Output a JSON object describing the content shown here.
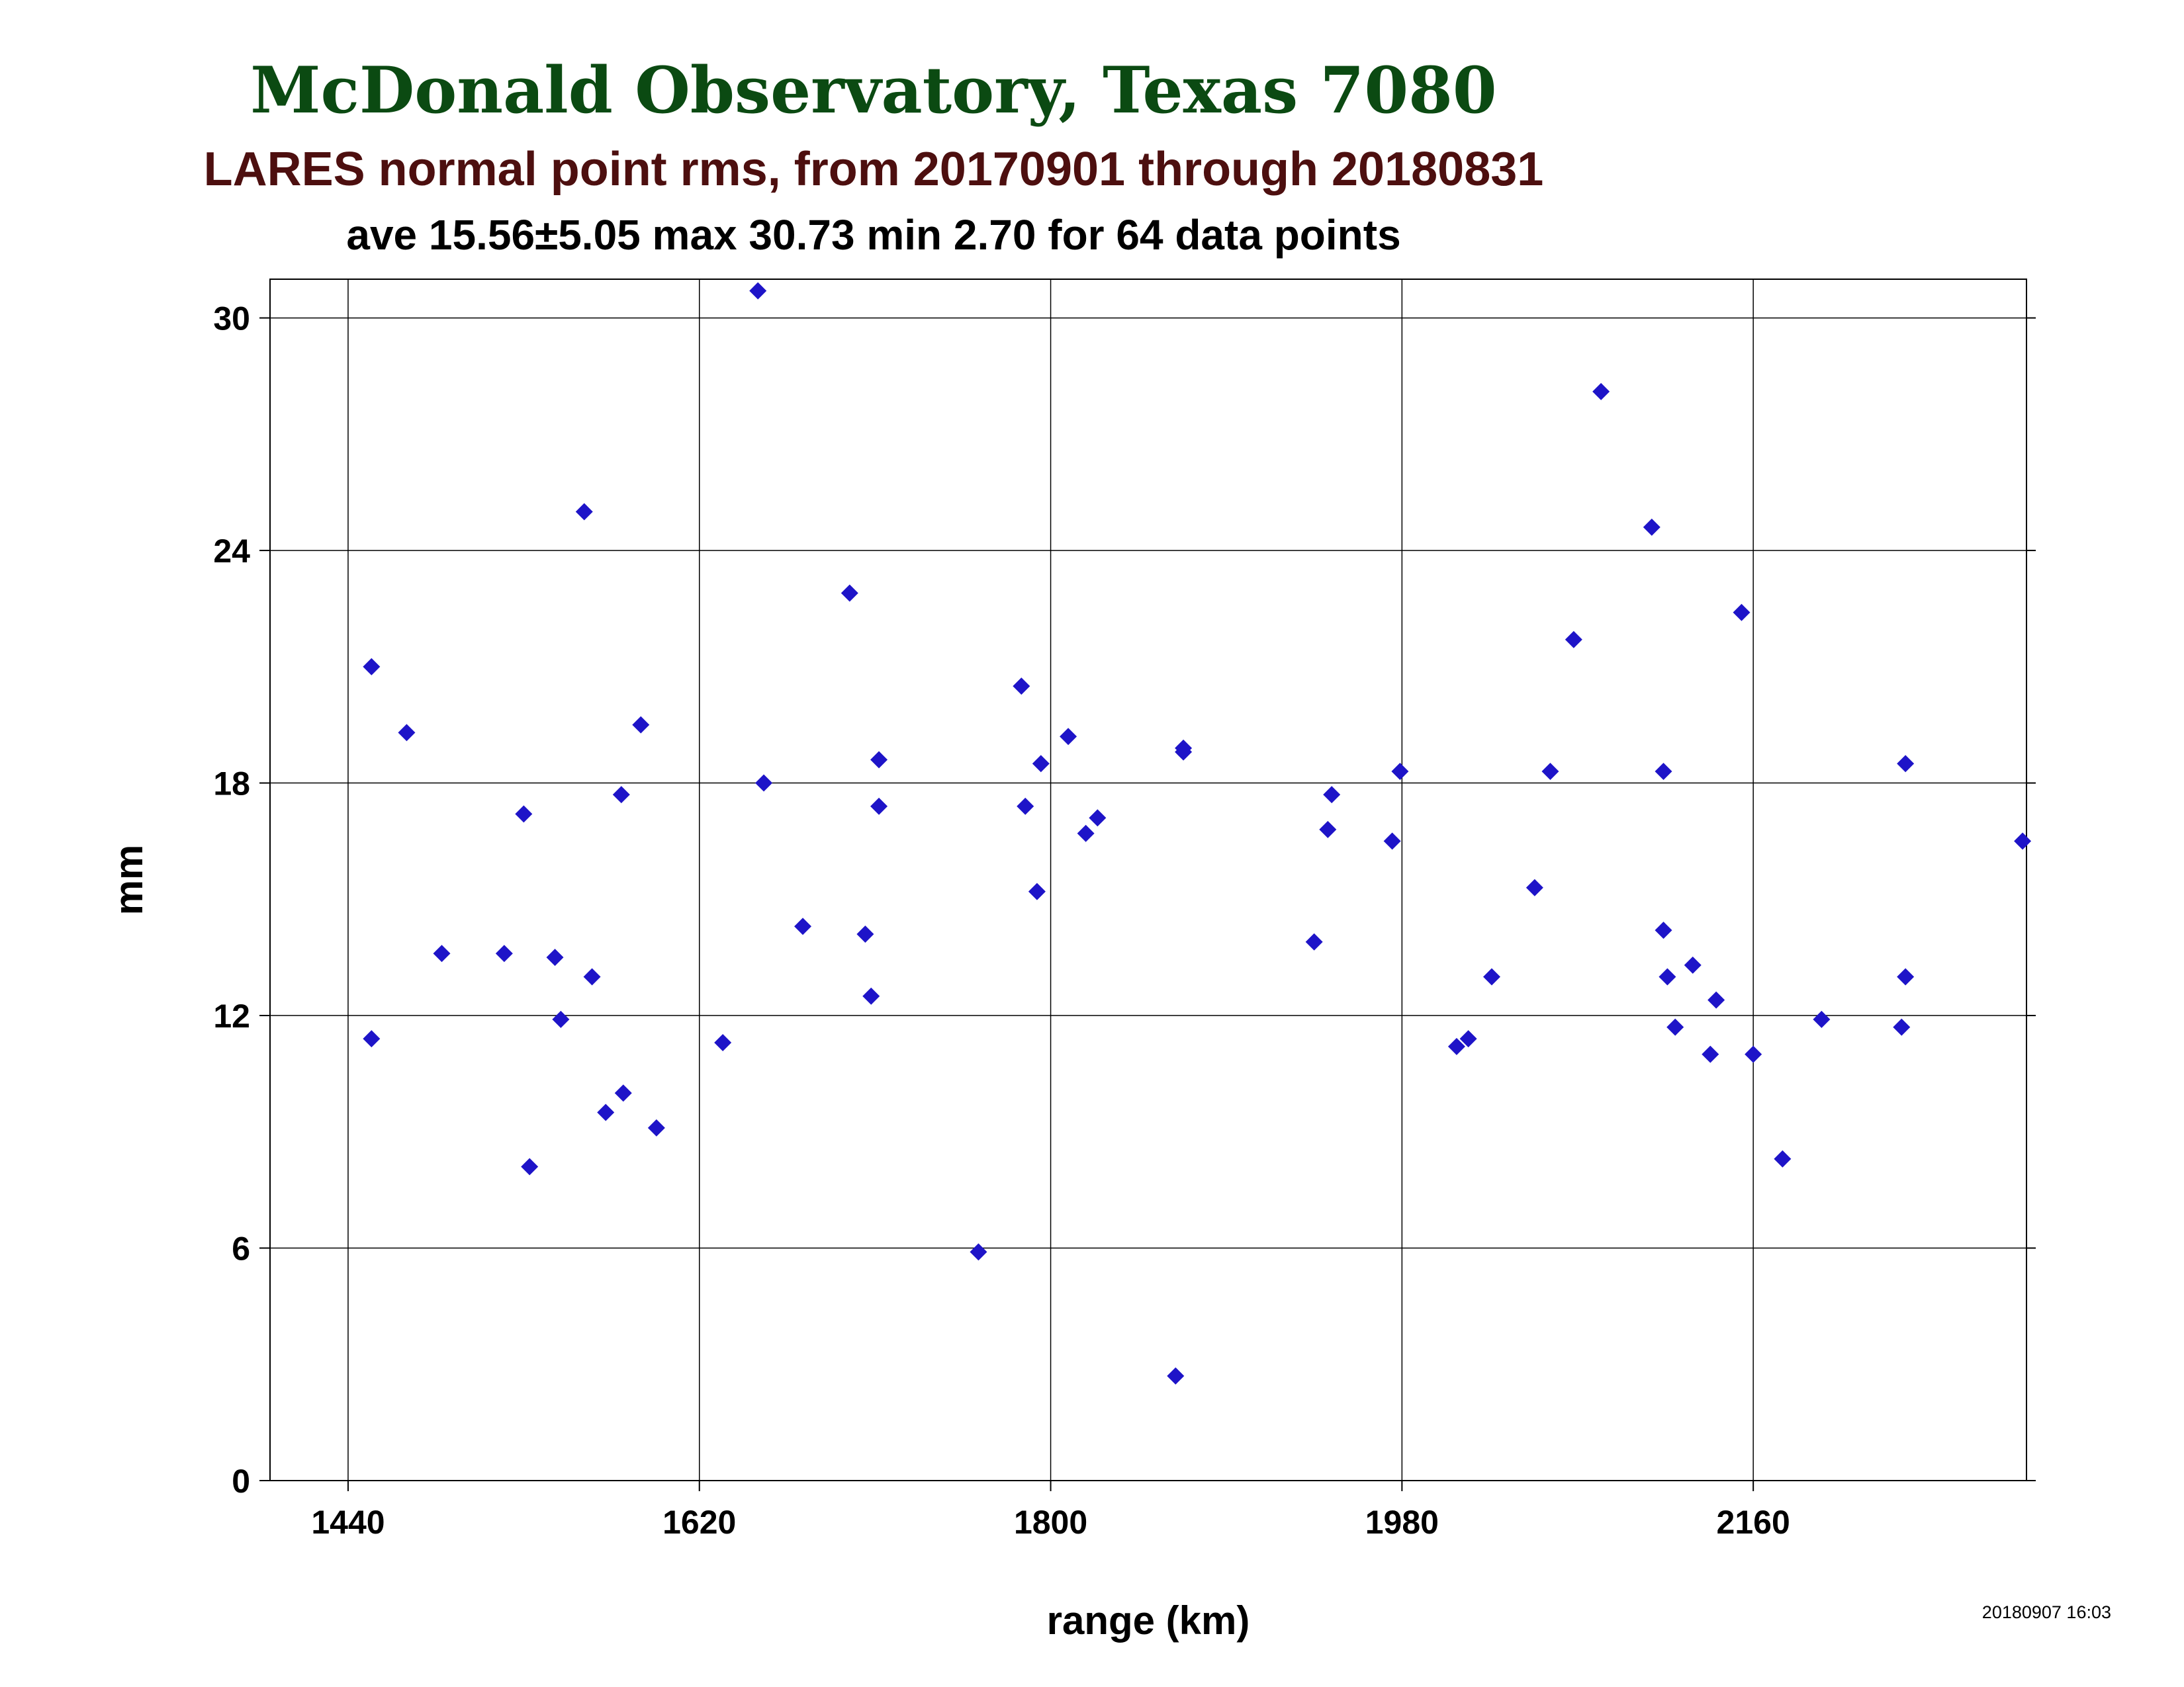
{
  "chart_data": {
    "type": "scatter",
    "title": "McDonald Observatory, Texas 7080",
    "subtitle": "LARES normal point rms, from 20170901 through 20180831",
    "stats_line": "ave 15.56±5.05 max 30.73 min 2.70 for 64 data points",
    "xlabel": "range (km)",
    "ylabel": "mm",
    "xlim": [
      1400,
      2300
    ],
    "ylim": [
      0,
      31
    ],
    "xticks": [
      1440,
      1620,
      1800,
      1980,
      2160
    ],
    "yticks": [
      0,
      6,
      12,
      18,
      24,
      30
    ],
    "grid": true,
    "marker": "diamond",
    "marker_color": "#1e14c8",
    "timestamp": "20180907 16:03",
    "points": [
      {
        "x": 1452,
        "y": 21.0
      },
      {
        "x": 1452,
        "y": 11.4
      },
      {
        "x": 1470,
        "y": 19.3
      },
      {
        "x": 1488,
        "y": 13.6
      },
      {
        "x": 1520,
        "y": 13.6
      },
      {
        "x": 1530,
        "y": 17.2
      },
      {
        "x": 1533,
        "y": 8.1
      },
      {
        "x": 1546,
        "y": 13.5
      },
      {
        "x": 1549,
        "y": 11.9
      },
      {
        "x": 1561,
        "y": 25.0
      },
      {
        "x": 1565,
        "y": 13.0
      },
      {
        "x": 1572,
        "y": 9.5
      },
      {
        "x": 1580,
        "y": 17.7
      },
      {
        "x": 1581,
        "y": 10.0
      },
      {
        "x": 1590,
        "y": 19.5
      },
      {
        "x": 1598,
        "y": 9.1
      },
      {
        "x": 1632,
        "y": 11.3
      },
      {
        "x": 1650,
        "y": 30.7
      },
      {
        "x": 1653,
        "y": 18.0
      },
      {
        "x": 1673,
        "y": 14.3
      },
      {
        "x": 1697,
        "y": 22.9
      },
      {
        "x": 1705,
        "y": 14.1
      },
      {
        "x": 1708,
        "y": 12.5
      },
      {
        "x": 1712,
        "y": 18.6
      },
      {
        "x": 1712,
        "y": 17.4
      },
      {
        "x": 1763,
        "y": 5.9
      },
      {
        "x": 1785,
        "y": 20.5
      },
      {
        "x": 1787,
        "y": 17.4
      },
      {
        "x": 1793,
        "y": 15.2
      },
      {
        "x": 1795,
        "y": 18.5
      },
      {
        "x": 1809,
        "y": 19.2
      },
      {
        "x": 1818,
        "y": 16.7
      },
      {
        "x": 1824,
        "y": 17.1
      },
      {
        "x": 1864,
        "y": 2.7
      },
      {
        "x": 1868,
        "y": 18.9
      },
      {
        "x": 1868,
        "y": 18.8
      },
      {
        "x": 1935,
        "y": 13.9
      },
      {
        "x": 1942,
        "y": 16.8
      },
      {
        "x": 1944,
        "y": 17.7
      },
      {
        "x": 1975,
        "y": 16.5
      },
      {
        "x": 1979,
        "y": 18.3
      },
      {
        "x": 2008,
        "y": 11.2
      },
      {
        "x": 2014,
        "y": 11.4
      },
      {
        "x": 2026,
        "y": 13.0
      },
      {
        "x": 2048,
        "y": 15.3
      },
      {
        "x": 2056,
        "y": 18.3
      },
      {
        "x": 2068,
        "y": 21.7
      },
      {
        "x": 2082,
        "y": 28.1
      },
      {
        "x": 2108,
        "y": 24.6
      },
      {
        "x": 2114,
        "y": 18.3
      },
      {
        "x": 2114,
        "y": 14.2
      },
      {
        "x": 2116,
        "y": 13.0
      },
      {
        "x": 2120,
        "y": 11.7
      },
      {
        "x": 2129,
        "y": 13.3
      },
      {
        "x": 2138,
        "y": 11.0
      },
      {
        "x": 2141,
        "y": 12.4
      },
      {
        "x": 2154,
        "y": 22.4
      },
      {
        "x": 2160,
        "y": 11.0
      },
      {
        "x": 2175,
        "y": 8.3
      },
      {
        "x": 2195,
        "y": 11.9
      },
      {
        "x": 2236,
        "y": 11.7
      },
      {
        "x": 2238,
        "y": 18.5
      },
      {
        "x": 2238,
        "y": 13.0
      },
      {
        "x": 2298,
        "y": 16.5
      }
    ]
  }
}
